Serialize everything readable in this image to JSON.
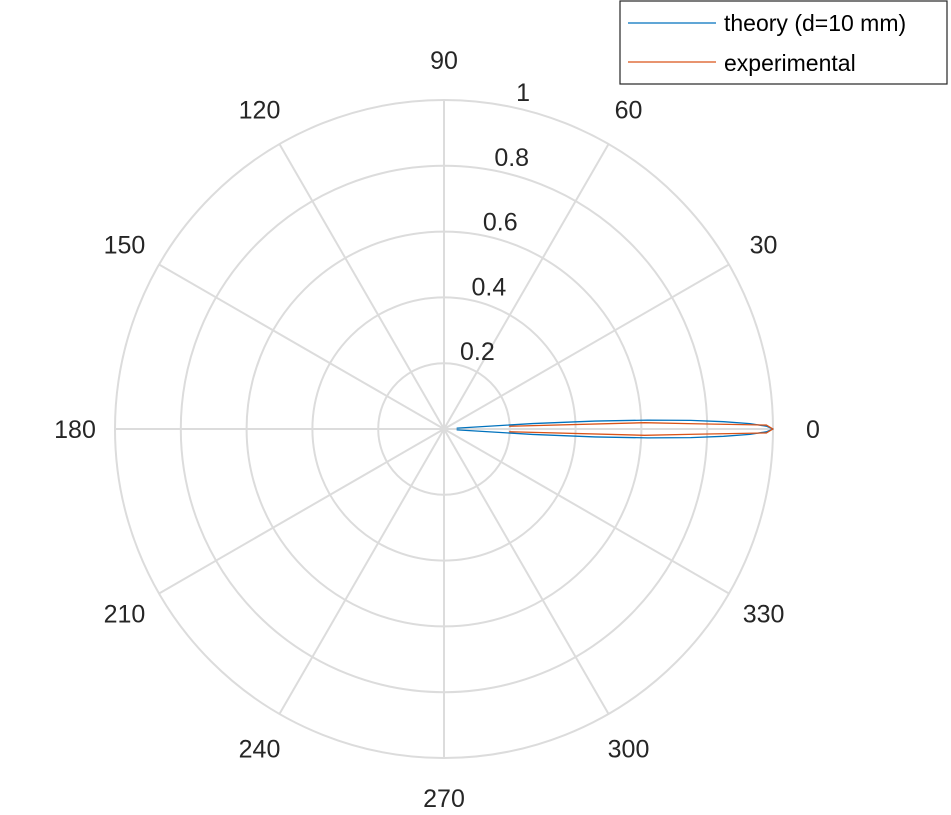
{
  "chart_data": {
    "type": "polar-line",
    "r_ticks": [
      "0.2",
      "0.4",
      "0.6",
      "0.8",
      "1"
    ],
    "r_values": [
      0.2,
      0.4,
      0.6,
      0.8,
      1.0
    ],
    "rlim": [
      0,
      1
    ],
    "theta_ticks": [
      "0",
      "30",
      "60",
      "90",
      "120",
      "150",
      "180",
      "210",
      "240",
      "270",
      "300",
      "330"
    ],
    "theta_values_deg": [
      0,
      30,
      60,
      90,
      120,
      150,
      180,
      210,
      240,
      270,
      300,
      330
    ],
    "grid": true,
    "legend_position": "top-right",
    "series": [
      {
        "name": "theory (d=10 mm)",
        "color": "#0072BD",
        "theta_deg": [
          0,
          0.5,
          1,
          1.5,
          2,
          2.5,
          3,
          3.5,
          3.8,
          3.5,
          3,
          2.5,
          2,
          1.5,
          1,
          0.5,
          0,
          -0.5,
          -1,
          -1.5,
          -2,
          -2.5,
          -3,
          -3.5,
          -3.8,
          -3.5,
          -3,
          -2.5,
          -2,
          -1.5,
          -1,
          -0.5,
          0
        ],
        "r": [
          1.0,
          0.98,
          0.93,
          0.85,
          0.75,
          0.62,
          0.46,
          0.27,
          0.04,
          0.27,
          0.46,
          0.62,
          0.75,
          0.85,
          0.93,
          0.98,
          1.0,
          0.98,
          0.93,
          0.85,
          0.75,
          0.62,
          0.46,
          0.27,
          0.04,
          0.27,
          0.46,
          0.62,
          0.75,
          0.85,
          0.93,
          0.98,
          1.0
        ]
      },
      {
        "name": "experimental",
        "color": "#D95319",
        "theta_deg": [
          0,
          0.7,
          1.2,
          1.8,
          2.4,
          1.8,
          1.2,
          0.7,
          0,
          -0.7,
          -1.2,
          -1.8,
          -2.4,
          -1.8,
          -1.2,
          -0.7,
          0
        ],
        "r": [
          1.0,
          0.98,
          0.76,
          0.61,
          0.2,
          0.61,
          0.76,
          0.98,
          1.0,
          0.98,
          0.76,
          0.61,
          0.2,
          0.61,
          0.76,
          0.98,
          1.0
        ]
      }
    ]
  }
}
